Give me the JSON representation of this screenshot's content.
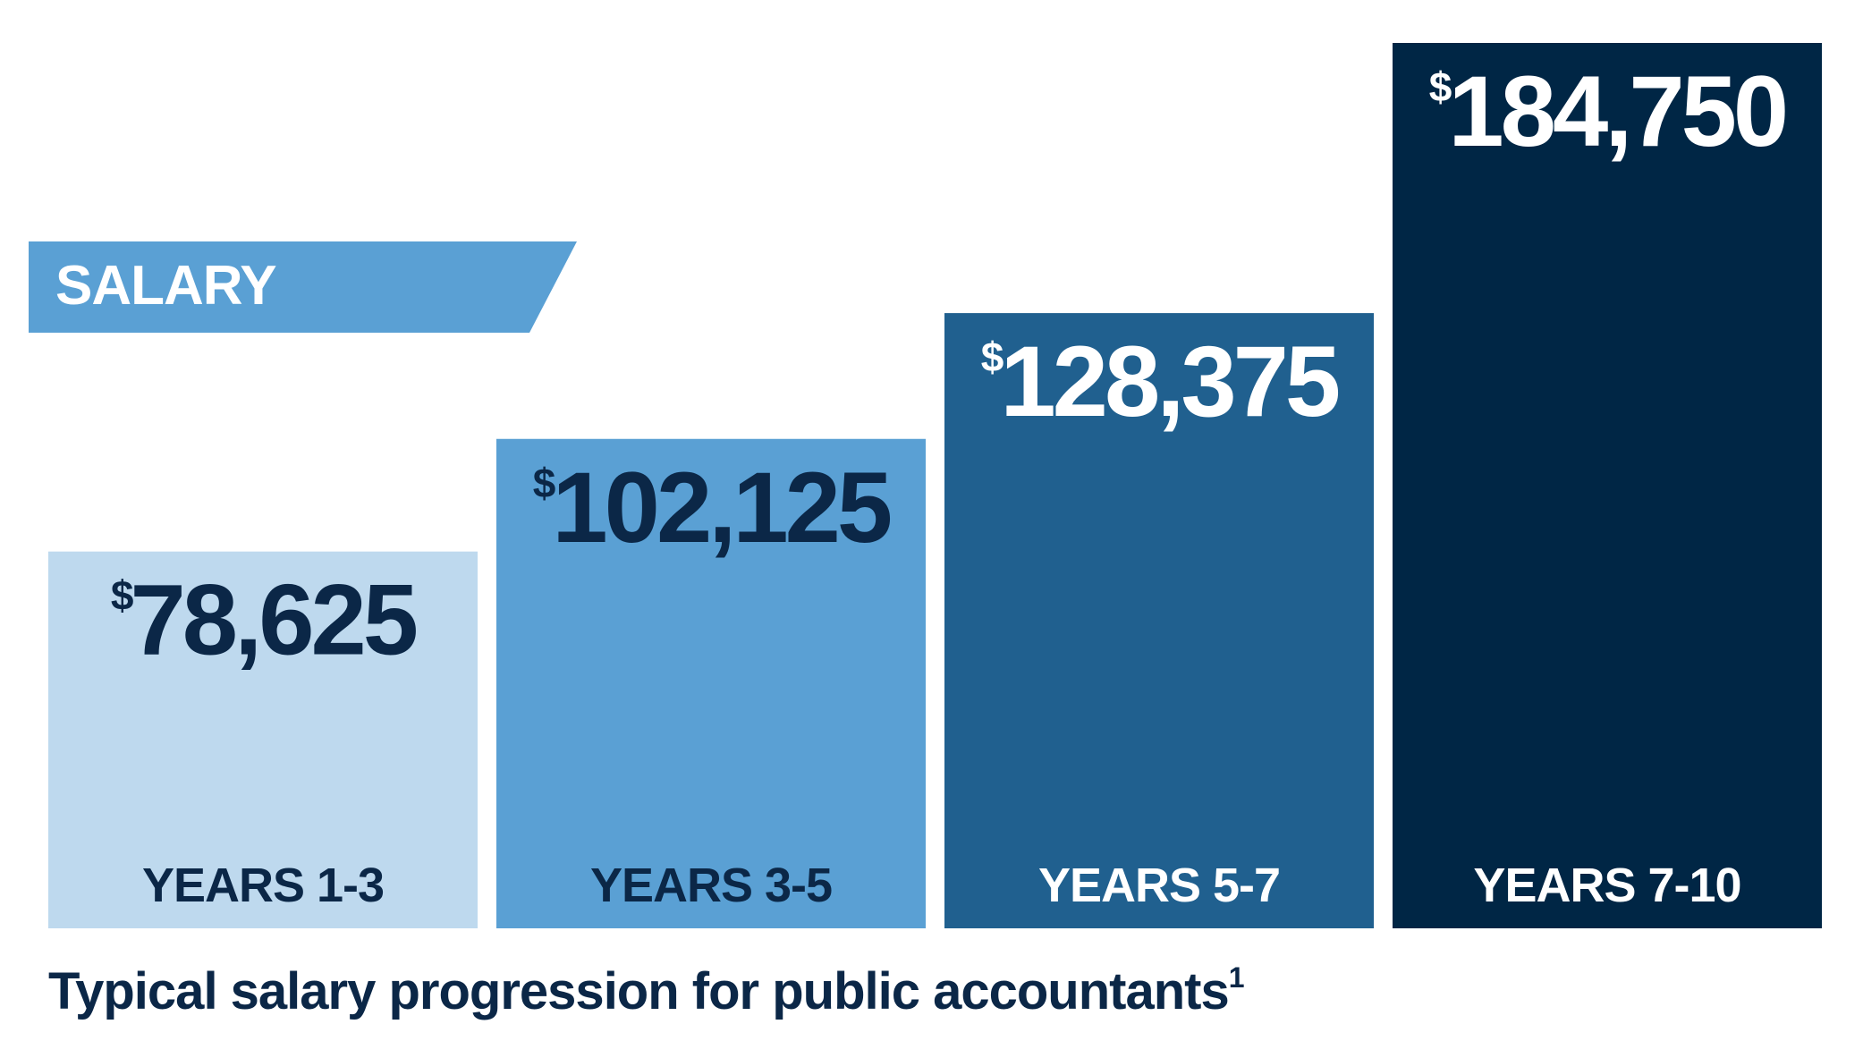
{
  "banner": {
    "label": "SALARY",
    "color": "#5aa0d4"
  },
  "caption": {
    "text": "Typical salary progression for public accountants",
    "footnote": "1",
    "color": "#0b2747"
  },
  "chart_data": {
    "type": "bar",
    "title": "Typical salary progression for public accountants",
    "categories": [
      "YEARS 1-3",
      "YEARS 3-5",
      "YEARS 5-7",
      "YEARS 7-10"
    ],
    "values": [
      78625,
      102125,
      128375,
      184750
    ],
    "value_labels": [
      "78,625",
      "102,125",
      "128,375",
      "184,750"
    ],
    "currency_symbol": "$",
    "bar_colors": [
      "#bed9ee",
      "#5aa0d4",
      "#20608f",
      "#002645"
    ],
    "label_colors": [
      "#0b2747",
      "#0b2747",
      "#ffffff",
      "#ffffff"
    ],
    "ylim": [
      0,
      184750
    ],
    "grid": false,
    "legend": "none"
  }
}
